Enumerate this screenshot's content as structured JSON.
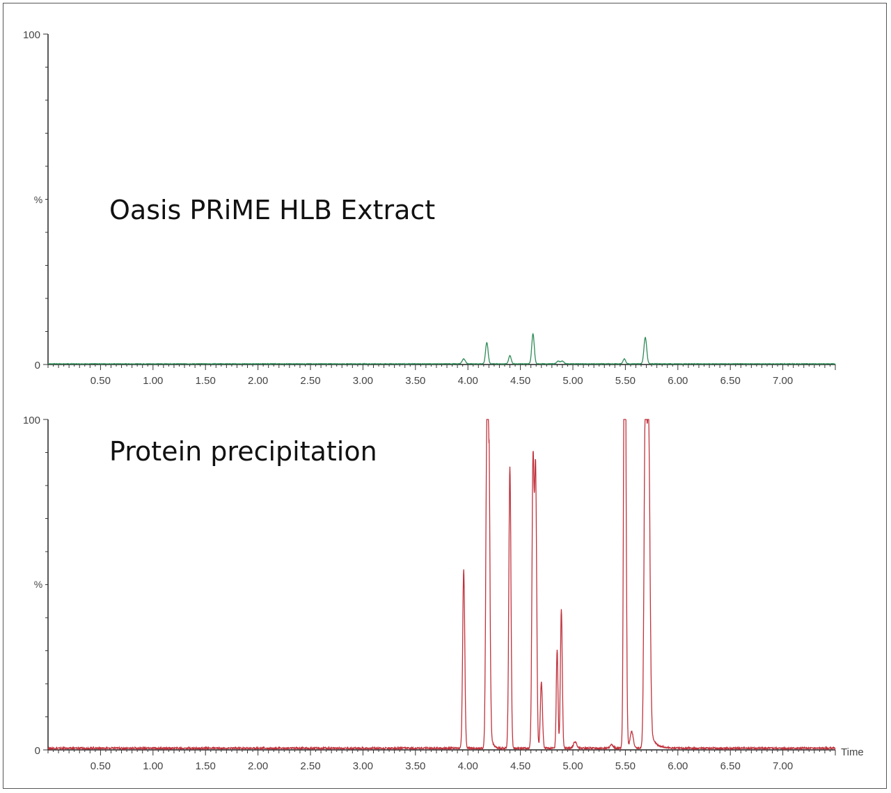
{
  "chart_data": [
    {
      "type": "line",
      "title": "Oasis PRiME HLB Extract",
      "ylabel": "%",
      "xlabel": "",
      "ylim": [
        0,
        100
      ],
      "xlim": [
        0.0,
        7.5
      ],
      "y_ticks": [
        "0",
        "100"
      ],
      "x_ticks": [
        "0.50",
        "1.00",
        "1.50",
        "2.00",
        "2.50",
        "3.00",
        "3.50",
        "4.00",
        "4.50",
        "5.00",
        "5.50",
        "6.00",
        "6.50",
        "7.00"
      ],
      "grid": false,
      "color": "#2e8b57",
      "baseline": 0.2,
      "peaks": [
        {
          "x": 3.96,
          "y": 1.5,
          "width": 0.015
        },
        {
          "x": 4.18,
          "y": 6.5,
          "width": 0.012
        },
        {
          "x": 4.4,
          "y": 2.5,
          "width": 0.012
        },
        {
          "x": 4.62,
          "y": 9.0,
          "width": 0.012
        },
        {
          "x": 4.86,
          "y": 0.8,
          "width": 0.015
        },
        {
          "x": 4.9,
          "y": 0.8,
          "width": 0.015
        },
        {
          "x": 5.49,
          "y": 1.5,
          "width": 0.012
        },
        {
          "x": 5.69,
          "y": 8.0,
          "width": 0.013
        }
      ]
    },
    {
      "type": "line",
      "title": "Protein precipitation",
      "ylabel": "%",
      "xlabel": "Time",
      "ylim": [
        0,
        100
      ],
      "xlim": [
        0.0,
        7.5
      ],
      "y_ticks": [
        "0",
        "100"
      ],
      "x_ticks": [
        "0.50",
        "1.00",
        "1.50",
        "2.00",
        "2.50",
        "3.00",
        "3.50",
        "4.00",
        "4.50",
        "5.00",
        "5.50",
        "6.00",
        "6.50",
        "7.00"
      ],
      "grid": false,
      "color": "#c0323c",
      "baseline": 0.5,
      "peaks": [
        {
          "x": 3.96,
          "y": 54,
          "width": 0.01
        },
        {
          "x": 4.18,
          "y": 90,
          "width": 0.01
        },
        {
          "x": 4.2,
          "y": 80,
          "width": 0.01
        },
        {
          "x": 4.4,
          "y": 85,
          "width": 0.01
        },
        {
          "x": 4.62,
          "y": 86,
          "width": 0.01
        },
        {
          "x": 4.645,
          "y": 83,
          "width": 0.01
        },
        {
          "x": 4.7,
          "y": 20,
          "width": 0.01
        },
        {
          "x": 4.85,
          "y": 30,
          "width": 0.008
        },
        {
          "x": 4.89,
          "y": 42,
          "width": 0.009
        },
        {
          "x": 5.02,
          "y": 2,
          "width": 0.015
        },
        {
          "x": 5.37,
          "y": 1,
          "width": 0.015
        },
        {
          "x": 5.49,
          "y": 98,
          "width": 0.009
        },
        {
          "x": 5.5,
          "y": 85,
          "width": 0.01
        },
        {
          "x": 5.56,
          "y": 5,
          "width": 0.015
        },
        {
          "x": 5.69,
          "y": 100,
          "width": 0.012
        },
        {
          "x": 5.72,
          "y": 95,
          "width": 0.014
        }
      ]
    }
  ]
}
